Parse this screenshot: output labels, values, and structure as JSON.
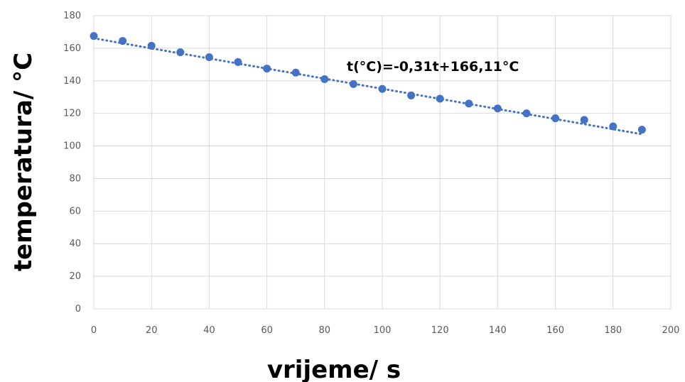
{
  "chart_data": {
    "type": "scatter",
    "x_label": "vrijeme/ s",
    "y_label": "temperatura/ °C",
    "annotation": "t(°C)=-0,31t+166,11°C",
    "xlim": [
      0,
      200
    ],
    "ylim": [
      0,
      180
    ],
    "x_ticks": [
      0,
      20,
      40,
      60,
      80,
      100,
      120,
      140,
      160,
      180,
      200
    ],
    "y_ticks": [
      0,
      20,
      40,
      60,
      80,
      100,
      120,
      140,
      160,
      180
    ],
    "grid": true,
    "marker_color": "#4472C4",
    "trendline": {
      "style": "dotted",
      "slope": -0.31,
      "intercept": 166.11,
      "x_range": [
        0,
        190
      ]
    },
    "x": [
      0,
      10,
      20,
      30,
      40,
      50,
      60,
      70,
      80,
      90,
      100,
      110,
      120,
      130,
      140,
      150,
      160,
      170,
      180,
      190
    ],
    "y": [
      167.5,
      164.5,
      161.5,
      157.5,
      154.5,
      151.5,
      147.5,
      145,
      141,
      138,
      135,
      131,
      129,
      126,
      123,
      120,
      117,
      116,
      112,
      110
    ]
  }
}
